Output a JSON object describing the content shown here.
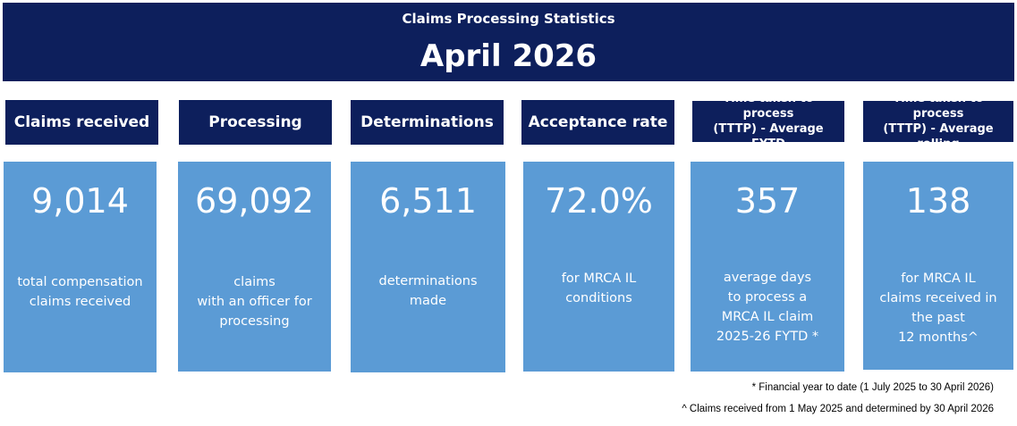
{
  "banner": {
    "subtitle": "Claims Processing Statistics",
    "title": "April 2026"
  },
  "stats": [
    {
      "header": "Claims received",
      "value": "9,014",
      "description": "total compensation\nclaims received"
    },
    {
      "header": "Processing",
      "value": "69,092",
      "description": "claims\nwith an officer for\nprocessing"
    },
    {
      "header": "Determinations",
      "value": "6,511",
      "description": "determinations\nmade"
    },
    {
      "header": "Acceptance rate",
      "value": "72.0%",
      "description": "for MRCA IL\nconditions"
    },
    {
      "header": "Time taken to process\n(TTTP) - Average FYTD",
      "value": "357",
      "description": "average days\nto process a\nMRCA IL claim\n2025-26 FYTD *"
    },
    {
      "header": "Time taken to process\n(TTTP) - Average rolling",
      "value": "138",
      "description": "for MRCA IL\nclaims received in\nthe past\n12 months^"
    }
  ],
  "footnotes": {
    "fytd": "* Financial year to date (1 July 2025 to 30 April 2026)",
    "rolling": "^ Claims received from 1 May 2025 and determined by 30 April 2026"
  }
}
